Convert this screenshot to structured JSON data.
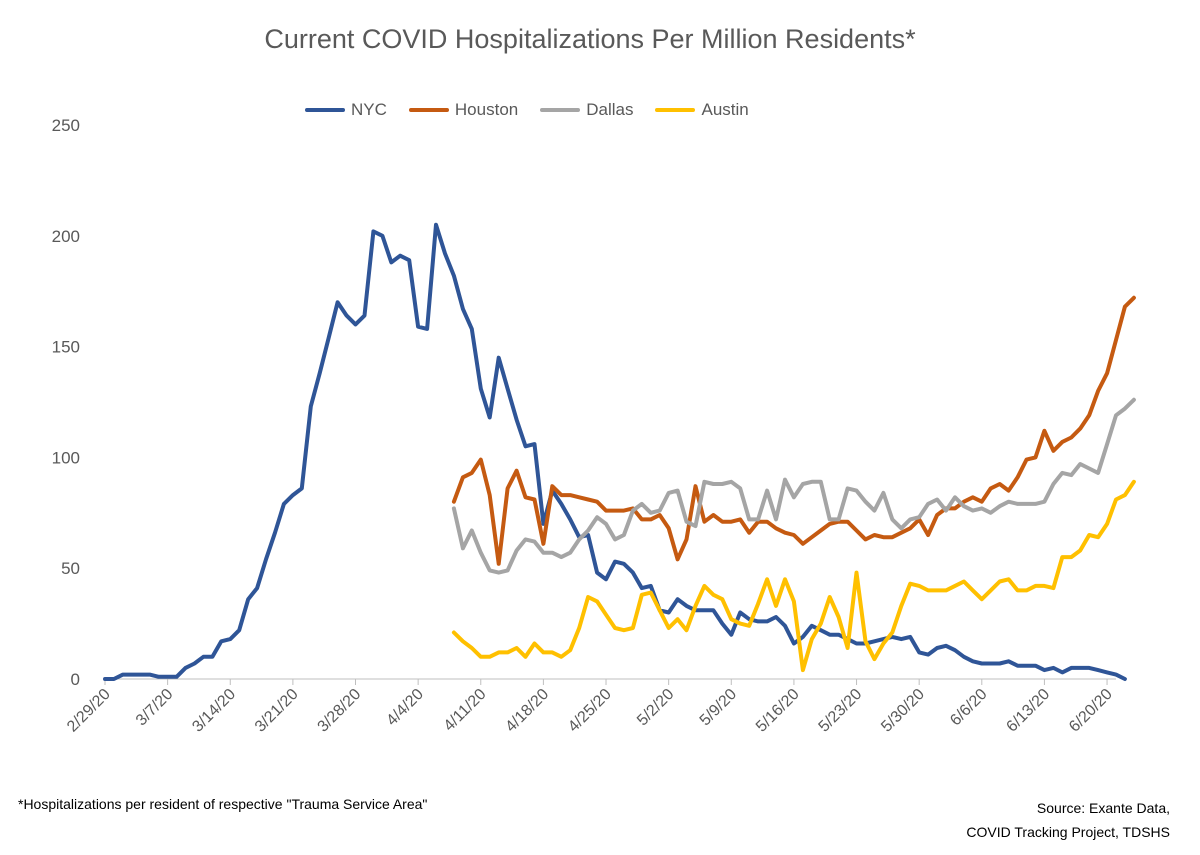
{
  "chart_data": {
    "type": "line",
    "title": "Current COVID Hospitalizations Per Million Residents*",
    "ylim": [
      0,
      250
    ],
    "yticks": [
      0,
      50,
      100,
      150,
      200,
      250
    ],
    "x_start": "2/29/20",
    "x_end": "6/21/20",
    "xtick_labels": [
      "2/29/20",
      "3/7/20",
      "3/14/20",
      "3/21/20",
      "3/28/20",
      "4/4/20",
      "4/11/20",
      "4/18/20",
      "4/25/20",
      "5/2/20",
      "5/9/20",
      "5/16/20",
      "5/23/20",
      "5/30/20",
      "6/6/20",
      "6/13/20",
      "6/20/20"
    ],
    "legend_position": "top",
    "grid": false,
    "series": [
      {
        "name": "NYC",
        "color": "#2f5597",
        "start": "2/29/20",
        "values": [
          0,
          0,
          2,
          2,
          2,
          2,
          1,
          1,
          1,
          5,
          7,
          10,
          10,
          17,
          18,
          22,
          36,
          41,
          54,
          66,
          79,
          83,
          86,
          123,
          138,
          154,
          170,
          164,
          160,
          164,
          202,
          200,
          188,
          191,
          189,
          159,
          158,
          205,
          192,
          182,
          167,
          158,
          131,
          118,
          145,
          131,
          117,
          105,
          106,
          70,
          85,
          79,
          72,
          64,
          65,
          48,
          45,
          53,
          52,
          48,
          41,
          42,
          31,
          30,
          36,
          33,
          31,
          31,
          31,
          25,
          20,
          30,
          27,
          26,
          26,
          28,
          24,
          16,
          19,
          24,
          22,
          20,
          20,
          18,
          16,
          16,
          17,
          18,
          19,
          18,
          19,
          12,
          11,
          14,
          15,
          13,
          10,
          8,
          7,
          7,
          7,
          8,
          6,
          6,
          6,
          4,
          5,
          3,
          5,
          5,
          5,
          4,
          3,
          2,
          0
        ]
      },
      {
        "name": "Houston",
        "color": "#c55a11",
        "start": "4/8/20",
        "values": [
          80,
          91,
          93,
          99,
          83,
          52,
          86,
          94,
          82,
          81,
          61,
          87,
          83,
          83,
          82,
          81,
          80,
          76,
          76,
          76,
          77,
          72,
          72,
          74,
          68,
          54,
          63,
          87,
          71,
          74,
          71,
          71,
          72,
          66,
          71,
          71,
          68,
          66,
          65,
          61,
          64,
          67,
          70,
          71,
          71,
          67,
          63,
          65,
          64,
          64,
          66,
          68,
          72,
          65,
          74,
          77,
          77,
          80,
          82,
          80,
          86,
          88,
          85,
          91,
          99,
          100,
          112,
          103,
          107,
          109,
          113,
          119,
          130,
          138,
          153,
          168,
          172
        ]
      },
      {
        "name": "Dallas",
        "color": "#a5a5a5",
        "start": "4/8/20",
        "values": [
          77,
          59,
          67,
          57,
          49,
          48,
          49,
          58,
          63,
          62,
          57,
          57,
          55,
          57,
          63,
          67,
          73,
          70,
          63,
          65,
          76,
          79,
          75,
          76,
          84,
          85,
          71,
          69,
          89,
          88,
          88,
          89,
          86,
          72,
          72,
          85,
          72,
          90,
          82,
          88,
          89,
          89,
          72,
          72,
          86,
          85,
          80,
          76,
          84,
          72,
          68,
          72,
          73,
          79,
          81,
          76,
          82,
          78,
          76,
          77,
          75,
          78,
          80,
          79,
          79,
          79,
          80,
          88,
          93,
          92,
          97,
          95,
          93,
          106,
          119,
          122,
          126
        ]
      },
      {
        "name": "Austin",
        "color": "#ffc000",
        "start": "4/8/20",
        "values": [
          21,
          17,
          14,
          10,
          10,
          12,
          12,
          14,
          10,
          16,
          12,
          12,
          10,
          13,
          23,
          37,
          35,
          29,
          23,
          22,
          23,
          38,
          39,
          31,
          23,
          27,
          22,
          33,
          42,
          38,
          36,
          27,
          25,
          24,
          34,
          45,
          33,
          45,
          35,
          4,
          18,
          25,
          37,
          28,
          14,
          48,
          17,
          9,
          16,
          21,
          33,
          43,
          42,
          40,
          40,
          40,
          42,
          44,
          40,
          36,
          40,
          44,
          45,
          40,
          40,
          42,
          42,
          41,
          55,
          55,
          58,
          65,
          64,
          70,
          81,
          83,
          89
        ]
      }
    ]
  },
  "footnote": "*Hospitalizations per resident of respective \"Trauma Service Area\"",
  "source_line1": "Source: Exante Data,",
  "source_line2": "COVID Tracking Project, TDSHS"
}
